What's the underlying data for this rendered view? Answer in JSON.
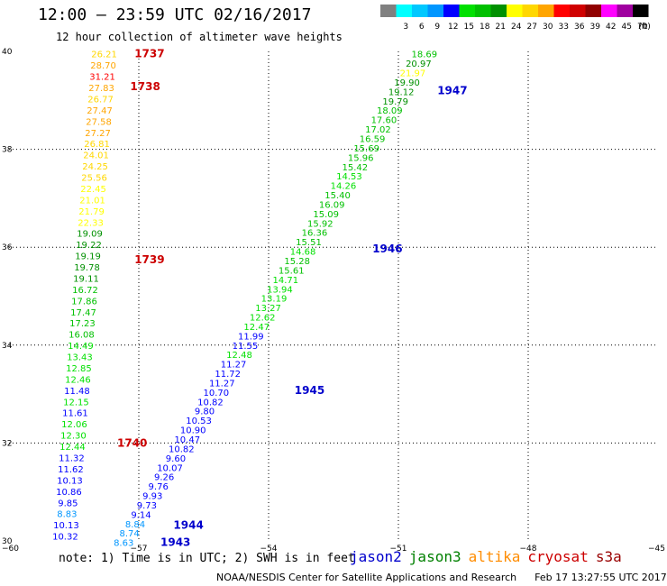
{
  "title": "12:00 – 23:59 UTC 02/16/2017",
  "subtitle": "12 hour collection of altimeter wave heights",
  "color_scale": {
    "unit": "(ft)",
    "bins": [
      {
        "label": "",
        "color": "#808080"
      },
      {
        "label": "3",
        "color": "#00ffff"
      },
      {
        "label": "6",
        "color": "#00c8ff"
      },
      {
        "label": "9",
        "color": "#0096ff"
      },
      {
        "label": "12",
        "color": "#0000ff"
      },
      {
        "label": "15",
        "color": "#00e000"
      },
      {
        "label": "18",
        "color": "#00c000"
      },
      {
        "label": "21",
        "color": "#009000"
      },
      {
        "label": "24",
        "color": "#ffff00"
      },
      {
        "label": "27",
        "color": "#ffd700"
      },
      {
        "label": "30",
        "color": "#ffa500"
      },
      {
        "label": "33",
        "color": "#ff0000"
      },
      {
        "label": "36",
        "color": "#d00000"
      },
      {
        "label": "39",
        "color": "#900000"
      },
      {
        "label": "42",
        "color": "#ff00ff"
      },
      {
        "label": "45",
        "color": "#a000a0"
      },
      {
        "label": "70",
        "color": "#000000"
      }
    ]
  },
  "axes": {
    "x_ticks": [
      "−60",
      "−57",
      "−54",
      "−51",
      "−48",
      "−45"
    ],
    "y_ticks": [
      "40",
      "38",
      "36",
      "34",
      "32",
      "30"
    ],
    "x_range": [
      -60,
      -45
    ],
    "y_range": [
      30,
      40
    ]
  },
  "satellite_colors": {
    "jason2": "#0000cc",
    "jason3": "#008000",
    "altika": "#ff8c00",
    "cryosat": "#cc0000",
    "s3a": "#990000"
  },
  "note": "note: 1) Time is in UTC; 2) SWH is in feet",
  "satellites": [
    {
      "name": "jason2",
      "color": "#0000cc"
    },
    {
      "name": "jason3",
      "color": "#008000"
    },
    {
      "name": "altika",
      "color": "#ff8c00"
    },
    {
      "name": "cryosat",
      "color": "#cc0000"
    },
    {
      "name": "s3a",
      "color": "#990000"
    }
  ],
  "footer": {
    "agency": "NOAA/NESDIS Center for Satellite Applications and Research",
    "timestamp": "Feb 17 13:27:55 UTC 2017"
  },
  "time_labels": [
    {
      "text": "1737",
      "lon": -57.1,
      "lat": 39.95,
      "color": "#cc0000"
    },
    {
      "text": "1738",
      "lon": -57.2,
      "lat": 39.28,
      "color": "#cc0000"
    },
    {
      "text": "1739",
      "lon": -57.1,
      "lat": 35.75,
      "color": "#cc0000"
    },
    {
      "text": "1740",
      "lon": -57.5,
      "lat": 32.0,
      "color": "#cc0000"
    },
    {
      "text": "1943",
      "lon": -56.5,
      "lat": 29.97,
      "color": "#0000cc"
    },
    {
      "text": "1944",
      "lon": -56.2,
      "lat": 30.32,
      "color": "#0000cc"
    },
    {
      "text": "1945",
      "lon": -53.4,
      "lat": 33.08,
      "color": "#0000cc"
    },
    {
      "text": "1946",
      "lon": -51.6,
      "lat": 35.97,
      "color": "#0000cc"
    },
    {
      "text": "1947",
      "lon": -50.1,
      "lat": 39.2,
      "color": "#0000cc"
    }
  ],
  "track_A": [
    {
      "v": "26.21",
      "c": "#ffd700"
    },
    {
      "v": "28.70",
      "c": "#ffa500"
    },
    {
      "v": "31.21",
      "c": "#ff0000"
    },
    {
      "v": "27.83",
      "c": "#ffa500"
    },
    {
      "v": "26.77",
      "c": "#ffd700"
    },
    {
      "v": "27.47",
      "c": "#ffa500"
    },
    {
      "v": "27.58",
      "c": "#ffa500"
    },
    {
      "v": "27.27",
      "c": "#ffa500"
    },
    {
      "v": "26.81",
      "c": "#ffd700"
    },
    {
      "v": "24.01",
      "c": "#ffd700"
    },
    {
      "v": "24.25",
      "c": "#ffd700"
    },
    {
      "v": "25.56",
      "c": "#ffd700"
    },
    {
      "v": "22.45",
      "c": "#ffff00"
    },
    {
      "v": "21.01",
      "c": "#ffff00"
    },
    {
      "v": "21.79",
      "c": "#ffff00"
    },
    {
      "v": "22.33",
      "c": "#ffff00"
    },
    {
      "v": "19.09",
      "c": "#009000"
    },
    {
      "v": "19.22",
      "c": "#009000"
    },
    {
      "v": "19.19",
      "c": "#009000"
    },
    {
      "v": "19.78",
      "c": "#009000"
    },
    {
      "v": "19.11",
      "c": "#009000"
    },
    {
      "v": "16.72",
      "c": "#00c000"
    },
    {
      "v": "17.86",
      "c": "#00c000"
    },
    {
      "v": "17.47",
      "c": "#00c000"
    },
    {
      "v": "17.23",
      "c": "#00c000"
    },
    {
      "v": "16.08",
      "c": "#00c000"
    },
    {
      "v": "14.49",
      "c": "#00e000"
    },
    {
      "v": "13.43",
      "c": "#00e000"
    },
    {
      "v": "12.85",
      "c": "#00e000"
    },
    {
      "v": "12.46",
      "c": "#00e000"
    },
    {
      "v": "11.48",
      "c": "#0000ff"
    },
    {
      "v": "12.15",
      "c": "#00e000"
    },
    {
      "v": "11.61",
      "c": "#0000ff"
    },
    {
      "v": "12.06",
      "c": "#00e000"
    },
    {
      "v": "12.30",
      "c": "#00e000"
    },
    {
      "v": "12.44",
      "c": "#00e000"
    },
    {
      "v": "11.32",
      "c": "#0000ff"
    },
    {
      "v": "11.62",
      "c": "#0000ff"
    },
    {
      "v": "10.13",
      "c": "#0000ff"
    },
    {
      "v": "10.86",
      "c": "#0000ff"
    },
    {
      "v": "9.85",
      "c": "#0000ff"
    },
    {
      "v": "8.83",
      "c": "#0096ff"
    },
    {
      "v": "10.13",
      "c": "#0000ff"
    },
    {
      "v": "10.32",
      "c": "#0000ff"
    }
  ],
  "track_B": [
    {
      "v": "18.69",
      "c": "#00c000"
    },
    {
      "v": "20.97",
      "c": "#009000"
    },
    {
      "v": "21.97",
      "c": "#ffff00"
    },
    {
      "v": "19.90",
      "c": "#009000"
    },
    {
      "v": "19.12",
      "c": "#009000"
    },
    {
      "v": "19.79",
      "c": "#009000"
    },
    {
      "v": "18.09",
      "c": "#00c000"
    },
    {
      "v": "17.60",
      "c": "#00c000"
    },
    {
      "v": "17.02",
      "c": "#00c000"
    },
    {
      "v": "16.59",
      "c": "#00c000"
    },
    {
      "v": "15.69",
      "c": "#00c000"
    },
    {
      "v": "15.96",
      "c": "#00c000"
    },
    {
      "v": "15.42",
      "c": "#00c000"
    },
    {
      "v": "14.53",
      "c": "#00e000"
    },
    {
      "v": "14.26",
      "c": "#00e000"
    },
    {
      "v": "15.40",
      "c": "#00c000"
    },
    {
      "v": "16.09",
      "c": "#00c000"
    },
    {
      "v": "15.09",
      "c": "#00c000"
    },
    {
      "v": "15.92",
      "c": "#00c000"
    },
    {
      "v": "16.36",
      "c": "#00c000"
    },
    {
      "v": "15.51",
      "c": "#00c000"
    },
    {
      "v": "14.68",
      "c": "#00e000"
    },
    {
      "v": "15.28",
      "c": "#00c000"
    },
    {
      "v": "15.61",
      "c": "#00c000"
    },
    {
      "v": "14.71",
      "c": "#00e000"
    },
    {
      "v": "13.94",
      "c": "#00e000"
    },
    {
      "v": "13.19",
      "c": "#00e000"
    },
    {
      "v": "13.27",
      "c": "#00e000"
    },
    {
      "v": "12.62",
      "c": "#00e000"
    },
    {
      "v": "12.47",
      "c": "#00e000"
    },
    {
      "v": "11.99",
      "c": "#0000ff"
    },
    {
      "v": "11.55",
      "c": "#0000ff"
    },
    {
      "v": "12.48",
      "c": "#00e000"
    },
    {
      "v": "11.27",
      "c": "#0000ff"
    },
    {
      "v": "11.72",
      "c": "#0000ff"
    },
    {
      "v": "11.27",
      "c": "#0000ff"
    },
    {
      "v": "10.70",
      "c": "#0000ff"
    },
    {
      "v": "10.82",
      "c": "#0000ff"
    },
    {
      "v": "9.80",
      "c": "#0000ff"
    },
    {
      "v": "10.53",
      "c": "#0000ff"
    },
    {
      "v": "10.90",
      "c": "#0000ff"
    },
    {
      "v": "10.47",
      "c": "#0000ff"
    },
    {
      "v": "10.82",
      "c": "#0000ff"
    },
    {
      "v": "9.60",
      "c": "#0000ff"
    },
    {
      "v": "10.07",
      "c": "#0000ff"
    },
    {
      "v": "9.26",
      "c": "#0000ff"
    },
    {
      "v": "9.76",
      "c": "#0000ff"
    },
    {
      "v": "9.93",
      "c": "#0000ff"
    },
    {
      "v": "9.73",
      "c": "#0000ff"
    },
    {
      "v": "9.14",
      "c": "#0000ff"
    },
    {
      "v": "8.84",
      "c": "#0096ff"
    },
    {
      "v": "8.74",
      "c": "#0096ff"
    },
    {
      "v": "8.63",
      "c": "#0096ff"
    }
  ]
}
